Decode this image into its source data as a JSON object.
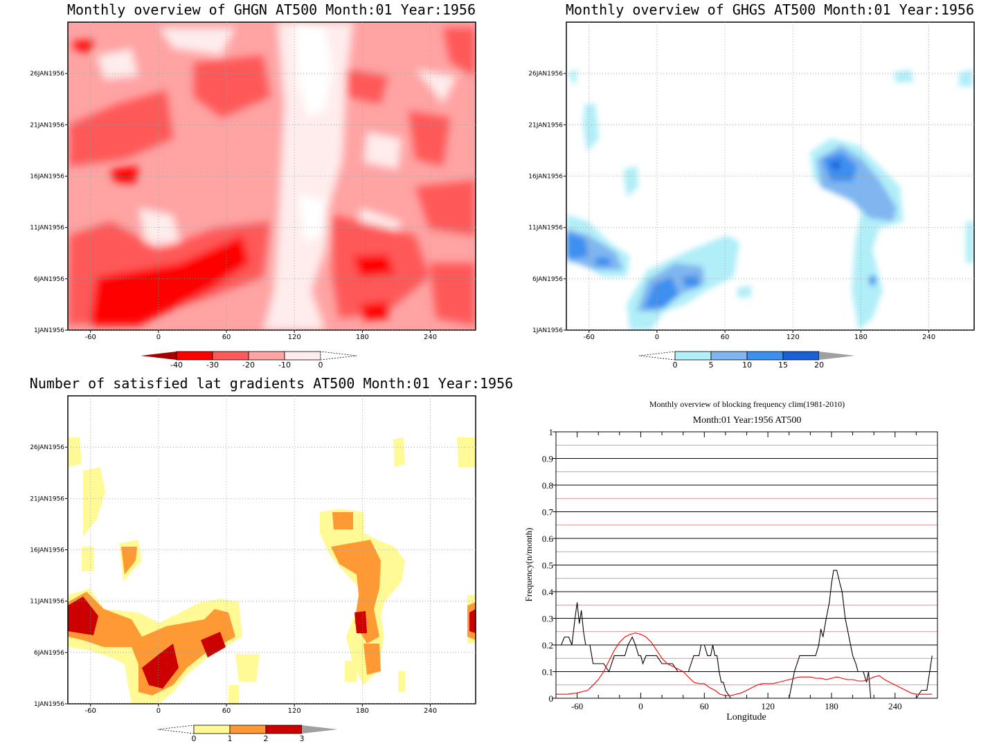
{
  "chart_data": [
    {
      "type": "heatmap",
      "title": "Monthly overview of GHGN AT500 Month:01 Year:1956",
      "x_ticks": [
        "-60",
        "0",
        "60",
        "120",
        "180",
        "240"
      ],
      "x_tick_values": [
        -60,
        0,
        60,
        120,
        180,
        240
      ],
      "xlim": [
        -80,
        280
      ],
      "y_ticks": [
        "1JAN1956",
        "6JAN1956",
        "11JAN1956",
        "16JAN1956",
        "21JAN1956",
        "26JAN1956"
      ],
      "y_tick_values": [
        1,
        6,
        11,
        16,
        21,
        26
      ],
      "ylim": [
        1,
        31
      ],
      "colorbar": {
        "labels": [
          "-40",
          "-30",
          "-20",
          "-10",
          "0"
        ],
        "colors": [
          "#a50000",
          "#ff0000",
          "#ff5959",
          "#ffa3a3",
          "#ffecec",
          "#ffffff"
        ],
        "extend": "both"
      }
    },
    {
      "type": "heatmap",
      "title": "Monthly overview of GHGS AT500 Month:01 Year:1956",
      "x_ticks": [
        "-60",
        "0",
        "60",
        "120",
        "180",
        "240"
      ],
      "x_tick_values": [
        -60,
        0,
        60,
        120,
        180,
        240
      ],
      "xlim": [
        -80,
        280
      ],
      "y_ticks": [
        "1JAN1956",
        "6JAN1956",
        "11JAN1956",
        "16JAN1956",
        "21JAN1956",
        "26JAN1956"
      ],
      "y_tick_values": [
        1,
        6,
        11,
        16,
        21,
        26
      ],
      "ylim": [
        1,
        31
      ],
      "colorbar": {
        "labels": [
          "0",
          "5",
          "10",
          "15",
          "20"
        ],
        "colors": [
          "#ffffff",
          "#b0eef8",
          "#7fb6f0",
          "#3c8ff0",
          "#1760d8",
          "#a0a0a0"
        ],
        "extend": "both"
      }
    },
    {
      "type": "heatmap",
      "title": "Number of satisfied lat gradients AT500 Month:01 Year:1956",
      "x_ticks": [
        "-60",
        "0",
        "60",
        "120",
        "180",
        "240"
      ],
      "x_tick_values": [
        -60,
        0,
        60,
        120,
        180,
        240
      ],
      "xlim": [
        -80,
        280
      ],
      "y_ticks": [
        "1JAN1956",
        "6JAN1956",
        "11JAN1956",
        "16JAN1956",
        "21JAN1956",
        "26JAN1956"
      ],
      "y_tick_values": [
        1,
        6,
        11,
        16,
        21,
        26
      ],
      "ylim": [
        1,
        31
      ],
      "colorbar": {
        "labels": [
          "0",
          "1",
          "2",
          "3"
        ],
        "colors": [
          "#ffffff",
          "#fffa96",
          "#ff9933",
          "#cc0000",
          "#a0a0a0"
        ],
        "extend": "both"
      }
    },
    {
      "type": "line",
      "title": "Monthly overview of blocking frequency clim(1981-2010)",
      "subtitle": "Month:01 Year:1956  AT500",
      "xlabel": "Longitude",
      "ylabel": "Frequency(n/month)",
      "xlim": [
        -80,
        280
      ],
      "ylim": [
        0,
        1
      ],
      "x_ticks": [
        "-60",
        "0",
        "60",
        "120",
        "180",
        "240"
      ],
      "x_tick_values": [
        -60,
        0,
        60,
        120,
        180,
        240
      ],
      "y_ticks": [
        "0",
        "0.1",
        "0.2",
        "0.3",
        "0.4",
        "0.5",
        "0.6",
        "0.7",
        "0.8",
        "0.9",
        "1"
      ],
      "y_tick_values": [
        0,
        0.1,
        0.2,
        0.3,
        0.4,
        0.5,
        0.6,
        0.7,
        0.8,
        0.9,
        1
      ],
      "grid": true,
      "series": [
        {
          "color": "#000000",
          "x": [
            -80,
            -75,
            -72,
            -68,
            -65,
            -62,
            -60,
            -58,
            -56,
            -54,
            -52,
            -50,
            -48,
            -45,
            -40,
            -35,
            -30,
            -25,
            -20,
            -15,
            -12,
            -8,
            -5,
            -2,
            0,
            2,
            5,
            8,
            10,
            15,
            20,
            25,
            30,
            35,
            40,
            45,
            50,
            55,
            57,
            60,
            63,
            66,
            68,
            70,
            72,
            74,
            76,
            78,
            80,
            85,
            90,
            95,
            100,
            105,
            110,
            115,
            120,
            125,
            130,
            135,
            140,
            145,
            150,
            155,
            160,
            165,
            168,
            170,
            172,
            175,
            178,
            180,
            182,
            185,
            188,
            190,
            193,
            195,
            198,
            200,
            203,
            205,
            208,
            210,
            213,
            215,
            217,
            220,
            225,
            230,
            235,
            240,
            245,
            250,
            255,
            260,
            265,
            270,
            275
          ],
          "y": [
            0.2,
            0.2,
            0.23,
            0.23,
            0.2,
            0.3,
            0.36,
            0.28,
            0.33,
            0.25,
            0.2,
            0.2,
            0.2,
            0.13,
            0.13,
            0.13,
            0.1,
            0.16,
            0.16,
            0.16,
            0.2,
            0.23,
            0.2,
            0.16,
            0.16,
            0.13,
            0.16,
            0.16,
            0.16,
            0.16,
            0.13,
            0.13,
            0.13,
            0.1,
            0.1,
            0.1,
            0.16,
            0.16,
            0.2,
            0.2,
            0.16,
            0.16,
            0.2,
            0.16,
            0.16,
            0.1,
            0.06,
            0.06,
            0.03,
            0.0,
            0.0,
            0.0,
            0.0,
            0.0,
            0.0,
            0.0,
            0.0,
            0.0,
            0.0,
            0.0,
            0.0,
            0.1,
            0.16,
            0.16,
            0.16,
            0.16,
            0.2,
            0.26,
            0.23,
            0.3,
            0.36,
            0.43,
            0.48,
            0.48,
            0.43,
            0.4,
            0.3,
            0.26,
            0.2,
            0.16,
            0.13,
            0.1,
            0.1,
            0.1,
            0.06,
            0.1,
            0.0,
            0.0,
            0.0,
            0.0,
            0.0,
            0.0,
            0.0,
            0.0,
            0.0,
            0.0,
            0.03,
            0.03,
            0.16
          ]
        },
        {
          "color": "#ff0000",
          "x": [
            -80,
            -70,
            -60,
            -50,
            -45,
            -40,
            -35,
            -30,
            -25,
            -20,
            -15,
            -10,
            -5,
            0,
            5,
            10,
            15,
            20,
            25,
            30,
            35,
            40,
            45,
            50,
            55,
            60,
            65,
            70,
            75,
            80,
            85,
            90,
            95,
            100,
            105,
            110,
            115,
            120,
            125,
            130,
            135,
            140,
            145,
            150,
            155,
            160,
            165,
            170,
            175,
            180,
            185,
            190,
            195,
            200,
            205,
            210,
            215,
            220,
            225,
            230,
            235,
            240,
            245,
            250,
            255,
            260,
            265,
            270,
            275
          ],
          "y": [
            0.015,
            0.015,
            0.02,
            0.03,
            0.05,
            0.07,
            0.1,
            0.14,
            0.18,
            0.21,
            0.23,
            0.24,
            0.245,
            0.24,
            0.23,
            0.21,
            0.18,
            0.15,
            0.13,
            0.12,
            0.11,
            0.1,
            0.08,
            0.06,
            0.055,
            0.055,
            0.04,
            0.03,
            0.015,
            0.01,
            0.01,
            0.015,
            0.02,
            0.03,
            0.04,
            0.05,
            0.055,
            0.055,
            0.055,
            0.06,
            0.065,
            0.07,
            0.075,
            0.08,
            0.08,
            0.08,
            0.075,
            0.075,
            0.07,
            0.075,
            0.08,
            0.075,
            0.07,
            0.07,
            0.065,
            0.065,
            0.07,
            0.08,
            0.085,
            0.07,
            0.06,
            0.05,
            0.04,
            0.03,
            0.02,
            0.015,
            0.015,
            0.015,
            0.015
          ]
        }
      ]
    }
  ]
}
